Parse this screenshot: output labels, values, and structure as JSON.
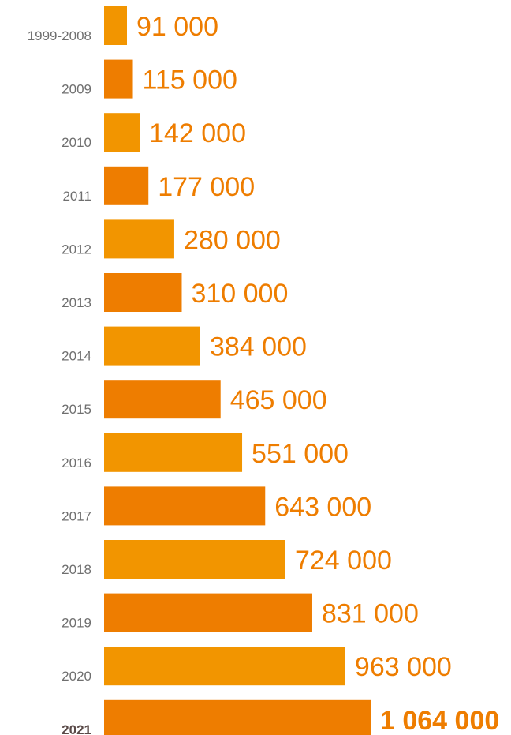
{
  "chart_data": {
    "type": "bar",
    "orientation": "horizontal",
    "categories": [
      "1999-2008",
      "2009",
      "2010",
      "2011",
      "2012",
      "2013",
      "2014",
      "2015",
      "2016",
      "2017",
      "2018",
      "2019",
      "2020",
      "2021"
    ],
    "values": [
      91000,
      115000,
      142000,
      177000,
      280000,
      310000,
      384000,
      465000,
      551000,
      643000,
      724000,
      831000,
      963000,
      1064000
    ],
    "value_labels": [
      "91 000",
      "115 000",
      "142 000",
      "177 000",
      "280 000",
      "310 000",
      "384 000",
      "465 000",
      "551 000",
      "643 000",
      "724 000",
      "831 000",
      "963 000",
      "1 064 000"
    ],
    "highlight_category": "2021",
    "title": "",
    "xlabel": "",
    "ylabel": "",
    "grid": false,
    "legend": "none",
    "colors": {
      "bar_light": "#F29500",
      "bar_dark": "#EE7D00",
      "value_text": "#EE7D00",
      "category_text": "#6f6f6f",
      "category_highlight_text": "#5a4a48"
    }
  }
}
